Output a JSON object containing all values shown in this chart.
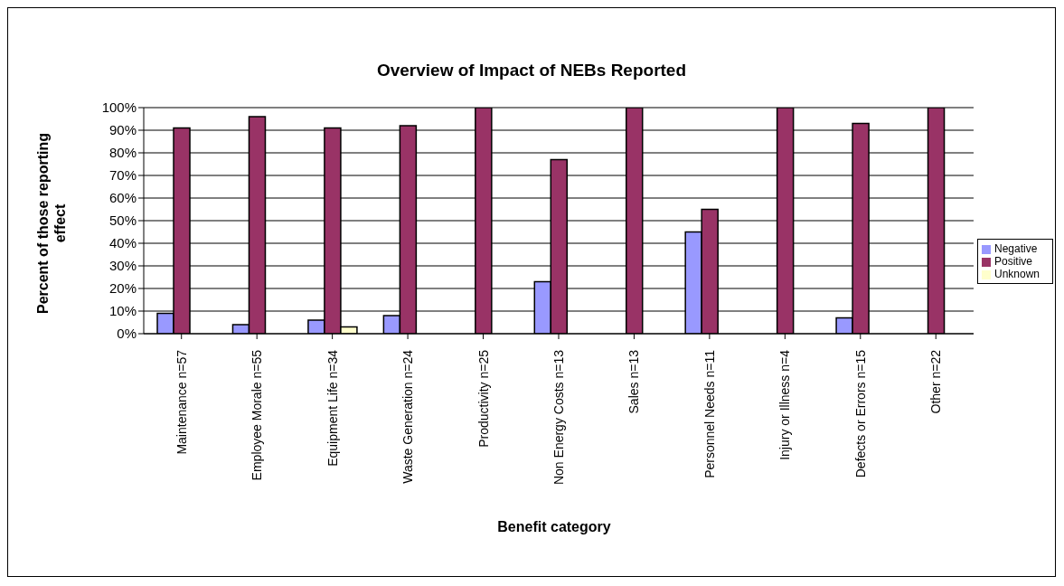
{
  "chart_data": {
    "type": "bar",
    "title": "Overview of Impact of NEBs Reported",
    "xlabel": "Benefit category",
    "ylabel": "Percent of those reporting effect",
    "categories": [
      "Maintenance n=57",
      "Employee Morale n=55",
      "Equipment Life n=34",
      "Waste Generation n=24",
      "Productivity n=25",
      "Non Energy Costs n=13",
      "Sales n=13",
      "Personnel Needs n=11",
      "Injury or Illness n=4",
      "Defects or Errors n=15",
      "Other n=22"
    ],
    "series": [
      {
        "name": "Negative",
        "color": "#9999ff",
        "values": [
          9,
          4,
          6,
          8,
          0,
          23,
          0,
          45,
          0,
          7,
          0
        ]
      },
      {
        "name": "Positive",
        "color": "#993366",
        "values": [
          91,
          96,
          91,
          92,
          100,
          77,
          100,
          55,
          100,
          93,
          100
        ]
      },
      {
        "name": "Unknown",
        "color": "#ffffcc",
        "values": [
          0,
          0,
          3,
          0,
          0,
          0,
          0,
          0,
          0,
          0,
          0
        ]
      }
    ],
    "ylim": [
      0,
      100
    ],
    "yticks": [
      {
        "value": 0,
        "label": "0%"
      },
      {
        "value": 10,
        "label": "10%"
      },
      {
        "value": 20,
        "label": "20%"
      },
      {
        "value": 30,
        "label": "30%"
      },
      {
        "value": 40,
        "label": "40%"
      },
      {
        "value": 50,
        "label": "50%"
      },
      {
        "value": 60,
        "label": "60%"
      },
      {
        "value": 70,
        "label": "70%"
      },
      {
        "value": 80,
        "label": "80%"
      },
      {
        "value": 90,
        "label": "90%"
      },
      {
        "value": 100,
        "label": "100%"
      }
    ],
    "grid": "y",
    "legend": "right"
  }
}
